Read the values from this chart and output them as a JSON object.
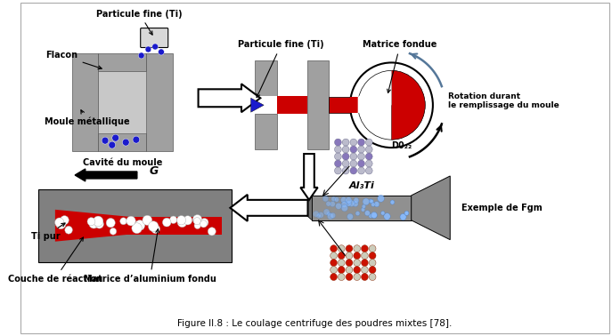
{
  "title": "Figure II.8 : Le coulage centrifuge des poudres mixtes [78].",
  "bg_color": "#ffffff",
  "gray_mold": "#a0a0a0",
  "gray_dark": "#888888",
  "red_color": "#cc0000",
  "blue_color": "#1a1acc",
  "labels": {
    "particule_fine_top": "Particule fine (Ti)",
    "flacon": "Flacon",
    "moule_metallique": "Moule métallique",
    "cavite_du_moule": "Cavité du moule",
    "particule_fine_mid": "Particule fine (Ti)",
    "matrice_fondue": "Matrice fondue",
    "rotation": "Rotation durant\nle remplissage du moule",
    "do22": "D0₂₂",
    "al3ti": "Al₃Ti",
    "exemple_fgm": "Exemple de Fgm",
    "g_label": "G",
    "ti_pur": "Ti pur",
    "couche_reaction": "Couche de réaction",
    "matrice_aluminium": "Matrice d’aluminium fondu"
  }
}
